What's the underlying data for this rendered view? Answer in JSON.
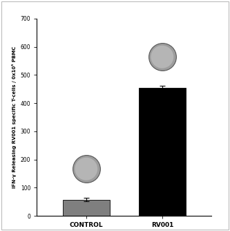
{
  "chart_data": {
    "type": "bar",
    "y_label": "IFN-γ Releasing RV001 specific T-cells / 0x10⁵ PBMC",
    "categories": [
      "CONTROL",
      "RV001"
    ],
    "values": [
      58,
      455
    ],
    "errors": [
      6,
      6
    ],
    "colors": [
      "#7f7f7f",
      "#000000"
    ],
    "ylim": [
      0,
      700
    ],
    "yticks": [
      0,
      100,
      200,
      300,
      400,
      500,
      600,
      700
    ],
    "grid": false
  }
}
